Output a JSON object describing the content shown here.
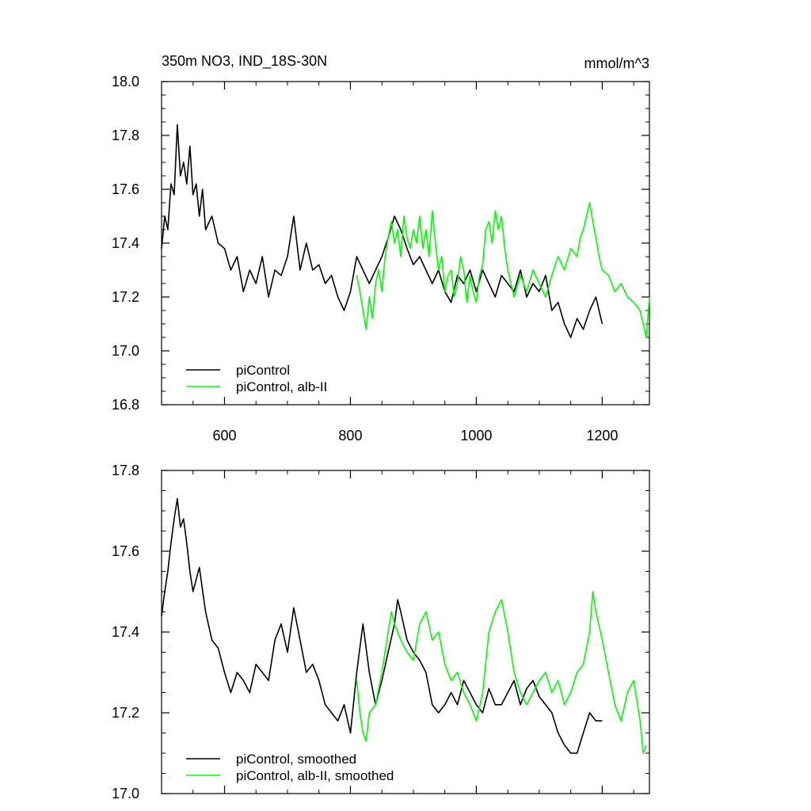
{
  "chart_data": [
    {
      "type": "line",
      "title": "350m NO3, IND_18S-30N",
      "units": "mmol/m^3",
      "xlim": [
        500,
        1275
      ],
      "ylim": [
        16.8,
        18.0
      ],
      "x_ticks": [
        600,
        800,
        1000,
        1200
      ],
      "x_tick_labels": [
        "600",
        "800",
        "1000",
        "1200"
      ],
      "y_ticks": [
        16.8,
        17.0,
        17.2,
        17.4,
        17.6,
        17.8,
        18.0
      ],
      "y_tick_labels": [
        "16.8",
        "17.0",
        "17.2",
        "17.4",
        "17.6",
        "17.8",
        "18.0"
      ],
      "legend": "bottom-left",
      "series": [
        {
          "name": "piControl",
          "color": "#000000",
          "x": [
            500,
            505,
            510,
            515,
            520,
            525,
            530,
            535,
            540,
            545,
            550,
            555,
            560,
            565,
            570,
            580,
            590,
            600,
            610,
            620,
            630,
            640,
            650,
            660,
            670,
            680,
            690,
            700,
            710,
            720,
            730,
            740,
            750,
            760,
            770,
            780,
            790,
            800,
            810,
            820,
            830,
            840,
            850,
            860,
            870,
            880,
            890,
            900,
            910,
            920,
            930,
            940,
            950,
            960,
            970,
            980,
            990,
            1000,
            1010,
            1020,
            1030,
            1040,
            1050,
            1060,
            1070,
            1080,
            1090,
            1100,
            1110,
            1120,
            1130,
            1140,
            1150,
            1160,
            1170,
            1180,
            1190,
            1200
          ],
          "values": [
            17.38,
            17.5,
            17.45,
            17.62,
            17.58,
            17.84,
            17.65,
            17.7,
            17.62,
            17.76,
            17.58,
            17.62,
            17.5,
            17.6,
            17.45,
            17.5,
            17.4,
            17.38,
            17.3,
            17.35,
            17.22,
            17.3,
            17.25,
            17.35,
            17.2,
            17.3,
            17.28,
            17.35,
            17.5,
            17.3,
            17.4,
            17.3,
            17.32,
            17.25,
            17.28,
            17.2,
            17.15,
            17.22,
            17.35,
            17.3,
            17.25,
            17.3,
            17.35,
            17.42,
            17.5,
            17.45,
            17.38,
            17.32,
            17.35,
            17.3,
            17.25,
            17.3,
            17.22,
            17.18,
            17.28,
            17.25,
            17.3,
            17.22,
            17.3,
            17.25,
            17.2,
            17.28,
            17.25,
            17.22,
            17.3,
            17.2,
            17.25,
            17.22,
            17.28,
            17.15,
            17.18,
            17.1,
            17.05,
            17.12,
            17.08,
            17.15,
            17.2,
            17.1
          ]
        },
        {
          "name": "piControl, alb-II",
          "color": "#00ff00",
          "x": [
            810,
            815,
            820,
            825,
            830,
            835,
            840,
            845,
            850,
            855,
            860,
            865,
            870,
            875,
            880,
            885,
            890,
            895,
            900,
            905,
            910,
            915,
            920,
            925,
            930,
            935,
            940,
            945,
            950,
            955,
            960,
            965,
            970,
            975,
            980,
            985,
            990,
            995,
            1000,
            1005,
            1010,
            1015,
            1020,
            1025,
            1030,
            1035,
            1040,
            1045,
            1050,
            1055,
            1060,
            1070,
            1080,
            1090,
            1100,
            1110,
            1120,
            1130,
            1140,
            1150,
            1160,
            1165,
            1170,
            1175,
            1180,
            1185,
            1190,
            1195,
            1200,
            1210,
            1220,
            1230,
            1240,
            1250,
            1260,
            1265,
            1270,
            1275
          ],
          "values": [
            17.28,
            17.22,
            17.15,
            17.08,
            17.2,
            17.12,
            17.25,
            17.3,
            17.22,
            17.35,
            17.42,
            17.48,
            17.4,
            17.45,
            17.35,
            17.5,
            17.42,
            17.38,
            17.45,
            17.4,
            17.5,
            17.38,
            17.45,
            17.35,
            17.52,
            17.4,
            17.3,
            17.35,
            17.22,
            17.28,
            17.3,
            17.2,
            17.25,
            17.35,
            17.3,
            17.18,
            17.28,
            17.22,
            17.18,
            17.28,
            17.32,
            17.45,
            17.48,
            17.4,
            17.52,
            17.45,
            17.5,
            17.38,
            17.3,
            17.25,
            17.2,
            17.28,
            17.22,
            17.3,
            17.25,
            17.2,
            17.28,
            17.35,
            17.3,
            17.38,
            17.35,
            17.42,
            17.45,
            17.5,
            17.55,
            17.48,
            17.42,
            17.35,
            17.3,
            17.28,
            17.22,
            17.25,
            17.2,
            17.18,
            17.15,
            17.1,
            17.05,
            17.2
          ]
        }
      ]
    },
    {
      "type": "line",
      "title": "",
      "units": "",
      "xlim": [
        500,
        1275
      ],
      "ylim": [
        17.0,
        17.8
      ],
      "x_ticks": [
        600,
        800,
        1000,
        1200
      ],
      "x_tick_labels": [],
      "y_ticks": [
        17.0,
        17.2,
        17.4,
        17.6,
        17.8
      ],
      "y_tick_labels": [
        "17.0",
        "17.2",
        "17.4",
        "17.6",
        "17.8"
      ],
      "legend": "bottom-left",
      "series": [
        {
          "name": "piControl, smoothed",
          "color": "#000000",
          "x": [
            500,
            505,
            510,
            515,
            520,
            525,
            530,
            535,
            540,
            545,
            550,
            560,
            570,
            580,
            590,
            600,
            610,
            620,
            630,
            640,
            650,
            660,
            670,
            680,
            690,
            700,
            710,
            720,
            730,
            740,
            750,
            760,
            770,
            780,
            790,
            800,
            810,
            820,
            830,
            840,
            850,
            860,
            870,
            875,
            880,
            890,
            900,
            910,
            920,
            930,
            940,
            950,
            960,
            970,
            980,
            990,
            1000,
            1010,
            1020,
            1030,
            1040,
            1050,
            1060,
            1070,
            1080,
            1090,
            1100,
            1110,
            1120,
            1130,
            1140,
            1150,
            1160,
            1170,
            1180,
            1190,
            1200
          ],
          "values": [
            17.44,
            17.5,
            17.55,
            17.62,
            17.68,
            17.73,
            17.66,
            17.68,
            17.62,
            17.55,
            17.5,
            17.56,
            17.45,
            17.38,
            17.36,
            17.3,
            17.25,
            17.3,
            17.28,
            17.25,
            17.32,
            17.3,
            17.28,
            17.38,
            17.42,
            17.35,
            17.46,
            17.38,
            17.3,
            17.32,
            17.28,
            17.22,
            17.2,
            17.18,
            17.22,
            17.15,
            17.3,
            17.42,
            17.3,
            17.22,
            17.28,
            17.35,
            17.42,
            17.48,
            17.45,
            17.38,
            17.35,
            17.33,
            17.3,
            17.22,
            17.2,
            17.22,
            17.25,
            17.22,
            17.28,
            17.25,
            17.22,
            17.2,
            17.26,
            17.22,
            17.22,
            17.25,
            17.28,
            17.22,
            17.26,
            17.28,
            17.24,
            17.22,
            17.2,
            17.15,
            17.12,
            17.1,
            17.1,
            17.15,
            17.2,
            17.18,
            17.18
          ]
        },
        {
          "name": "piControl, alb-II, smoothed",
          "color": "#00ff00",
          "x": [
            810,
            815,
            820,
            825,
            830,
            840,
            850,
            860,
            865,
            870,
            880,
            890,
            900,
            910,
            920,
            930,
            940,
            950,
            960,
            970,
            980,
            990,
            1000,
            1010,
            1020,
            1030,
            1040,
            1050,
            1060,
            1070,
            1080,
            1090,
            1100,
            1110,
            1120,
            1130,
            1140,
            1150,
            1160,
            1170,
            1180,
            1185,
            1190,
            1200,
            1210,
            1220,
            1230,
            1240,
            1250,
            1260,
            1265,
            1270
          ],
          "values": [
            17.28,
            17.2,
            17.15,
            17.13,
            17.2,
            17.22,
            17.3,
            17.4,
            17.45,
            17.42,
            17.38,
            17.35,
            17.33,
            17.42,
            17.45,
            17.38,
            17.4,
            17.32,
            17.28,
            17.3,
            17.25,
            17.22,
            17.18,
            17.25,
            17.4,
            17.45,
            17.48,
            17.4,
            17.3,
            17.25,
            17.22,
            17.25,
            17.28,
            17.3,
            17.25,
            17.28,
            17.22,
            17.25,
            17.3,
            17.32,
            17.4,
            17.5,
            17.45,
            17.38,
            17.3,
            17.22,
            17.18,
            17.25,
            17.28,
            17.18,
            17.1,
            17.12
          ]
        }
      ]
    }
  ]
}
